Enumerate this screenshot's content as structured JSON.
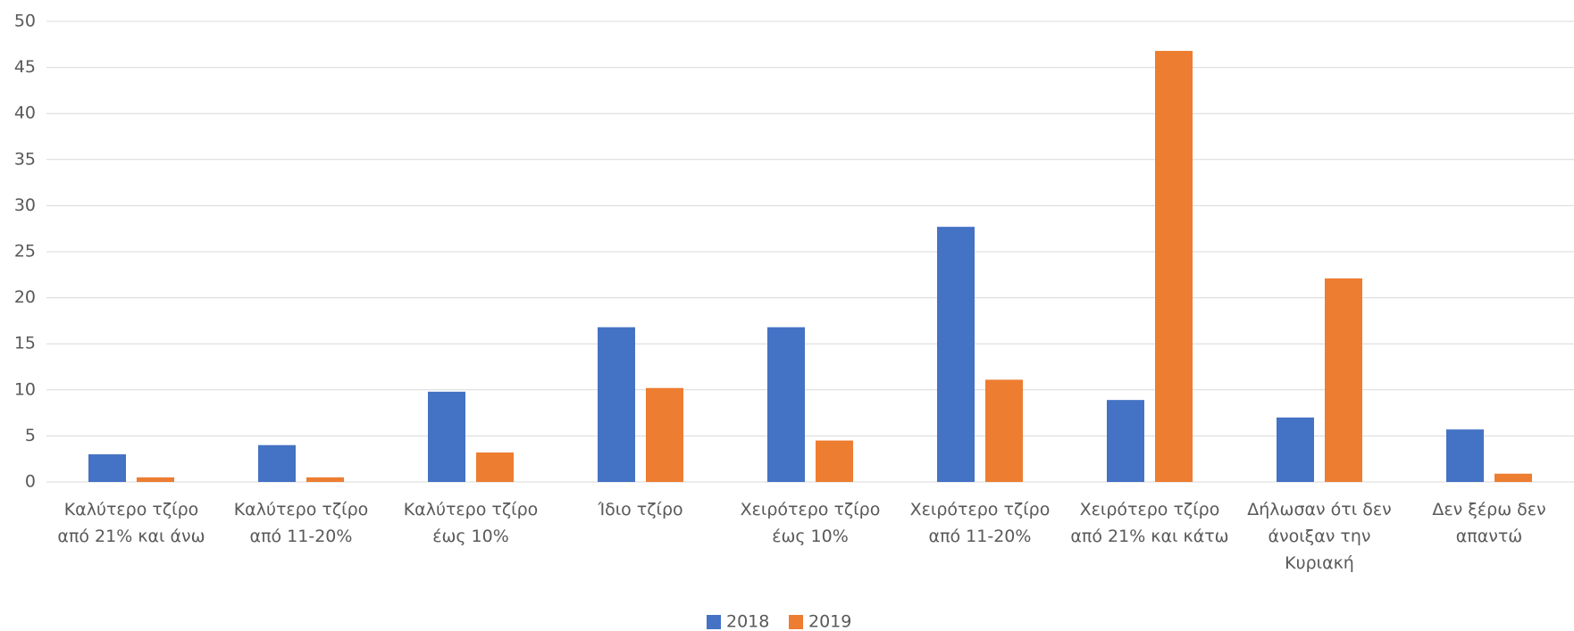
{
  "chart_data": {
    "type": "bar",
    "categories": [
      "Καλύτερο τζίρο από 21% και άνω",
      "Καλύτερο τζίρο από 11-20%",
      "Καλύτερο τζίρο έως 10%",
      "Ίδιο τζίρο",
      "Χειρότερο τζίρο έως 10%",
      "Χειρότερο τζίρο από 11-20%",
      "Χειρότερο τζίρο από 21% και κάτω",
      "Δήλωσαν ότι δεν άνοιξαν την Κυριακή",
      "Δεν ξέρω δεν απαντώ"
    ],
    "series": [
      {
        "name": "2018",
        "color": "#4472c4",
        "values": [
          3,
          4,
          9.8,
          16.8,
          16.8,
          27.7,
          8.9,
          7,
          5.7
        ]
      },
      {
        "name": "2019",
        "color": "#ed7d31",
        "values": [
          0.5,
          0.5,
          3.2,
          10.2,
          4.5,
          11.1,
          46.8,
          22.1,
          0.9
        ]
      }
    ],
    "ylim": [
      0,
      50
    ],
    "yticks": [
      0,
      5,
      10,
      15,
      20,
      25,
      30,
      35,
      40,
      45,
      50
    ],
    "grid": true,
    "legend": "bottom"
  }
}
